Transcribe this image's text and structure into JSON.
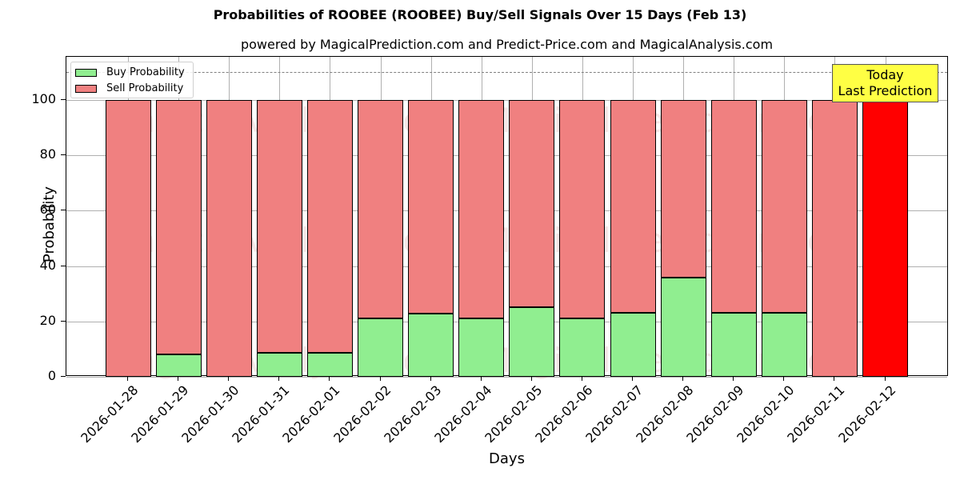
{
  "chart_data": {
    "type": "bar",
    "stacked": true,
    "title": "Probabilities of ROOBEE (ROOBEE) Buy/Sell Signals Over 15 Days (Feb 13)",
    "subtitle": "powered by MagicalPrediction.com and Predict-Price.com and MagicalAnalysis.com",
    "xlabel": "Days",
    "ylabel": "Probability",
    "ylim": [
      0,
      115
    ],
    "yticks": [
      0,
      20,
      40,
      60,
      80,
      100
    ],
    "grid": true,
    "legend_position": "upper left",
    "categories": [
      "2026-01-28",
      "2026-01-29",
      "2026-01-30",
      "2026-01-31",
      "2026-02-01",
      "2026-02-02",
      "2026-02-03",
      "2026-02-04",
      "2026-02-05",
      "2026-02-06",
      "2026-02-07",
      "2026-02-08",
      "2026-02-09",
      "2026-02-10",
      "2026-02-11",
      "2026-02-12"
    ],
    "series": [
      {
        "name": "Buy Probability",
        "color": "#90ee90",
        "values": [
          0,
          8.1,
          0,
          8.7,
          8.7,
          21.1,
          22.8,
          21.1,
          25.1,
          21.1,
          23.1,
          35.8,
          23.1,
          23.1,
          0,
          0
        ]
      },
      {
        "name": "Sell Probability",
        "color": "#f08080",
        "values": [
          100,
          91.9,
          100,
          91.3,
          91.3,
          78.9,
          77.2,
          78.9,
          74.9,
          78.9,
          76.9,
          64.2,
          76.9,
          76.9,
          100,
          100
        ]
      }
    ],
    "highlight": {
      "index": 15,
      "color": "#ff0000"
    },
    "reference_line": {
      "y": 110,
      "style": "dashed",
      "color": "#808080"
    },
    "annotation": {
      "line1": "Today",
      "line2": "Last Prediction",
      "background": "#ffff44"
    },
    "watermarks": [
      "MagicalAnalysis.com",
      "MagicalPrediction.com"
    ]
  }
}
